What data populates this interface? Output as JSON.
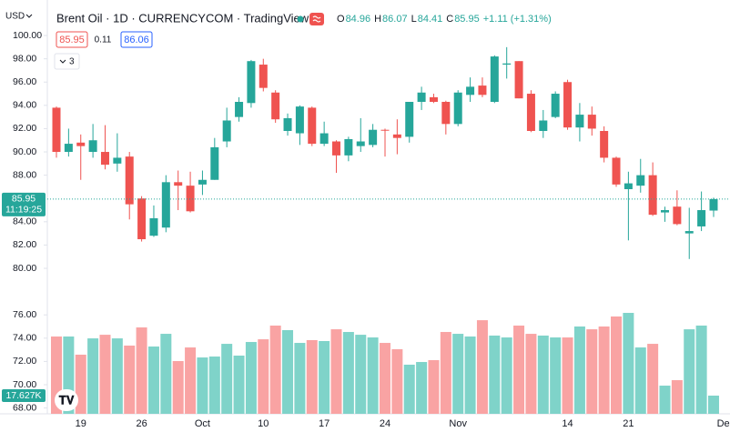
{
  "header": {
    "currency": "USD",
    "title": "Brent Oil · 1D · CURRENCYCOM · TradingView",
    "ohlc_keys": [
      "O",
      "H",
      "L",
      "C"
    ],
    "ohlc_values": [
      "84.96",
      "86.07",
      "84.41",
      "85.95"
    ],
    "change": "+1.11 (+1.31%)",
    "sell": "85.95",
    "spread": "0.11",
    "buy": "86.06",
    "indicator_count": "3"
  },
  "chart_data": {
    "type": "candlestick",
    "up_color": "#26a69a",
    "down_color": "#ef5350",
    "volume_up_color": "#7fd3c9",
    "volume_down_color": "#f9a3a3",
    "categories": [
      null,
      null,
      "19",
      null,
      null,
      null,
      null,
      "26",
      null,
      null,
      null,
      null,
      "Oct",
      null,
      null,
      null,
      null,
      "10",
      null,
      null,
      null,
      null,
      "17",
      null,
      null,
      null,
      null,
      "24",
      null,
      null,
      null,
      null,
      null,
      "Nov",
      null,
      null,
      null,
      null,
      null,
      null,
      null,
      null,
      "14",
      null,
      null,
      null,
      null,
      "21",
      null,
      null,
      null,
      null,
      null,
      null,
      null,
      "Dec"
    ],
    "open": [
      93.8,
      90.0,
      90.8,
      90.0,
      90.0,
      89.0,
      89.6,
      86.0,
      82.8,
      83.5,
      87.4,
      87.1,
      87.2,
      87.6,
      90.9,
      93.0,
      94.2,
      97.5,
      95.1,
      91.8,
      91.6,
      93.8,
      90.7,
      90.9,
      89.7,
      90.5,
      90.6,
      91.9,
      91.5,
      91.3,
      94.3,
      94.7,
      94.3,
      92.4,
      94.9,
      95.7,
      94.3,
      97.5,
      97.8,
      95.0,
      91.8,
      93.0,
      96.0,
      92.1,
      93.2,
      91.8,
      89.5,
      86.8,
      87.1,
      88.0,
      84.8,
      85.3,
      83.0,
      83.6,
      84.96,
      null
    ],
    "high": [
      93.9,
      92.0,
      91.5,
      92.4,
      92.3,
      91.6,
      90.0,
      86.2,
      85.4,
      88.0,
      88.4,
      88.3,
      88.4,
      91.2,
      93.8,
      94.7,
      97.9,
      98.0,
      95.3,
      93.3,
      94.0,
      93.9,
      92.6,
      91.0,
      91.3,
      92.9,
      92.4,
      92.0,
      92.8,
      94.3,
      95.6,
      95.0,
      94.4,
      95.3,
      96.4,
      96.4,
      98.3,
      99.0,
      97.8,
      95.3,
      93.6,
      95.2,
      96.2,
      94.2,
      93.9,
      92.2,
      89.6,
      88.3,
      89.4,
      89.1,
      85.3,
      86.7,
      85.2,
      86.6,
      86.07,
      null
    ],
    "low": [
      89.5,
      89.6,
      87.6,
      89.5,
      88.5,
      88.3,
      84.2,
      82.3,
      82.7,
      83.1,
      85.0,
      84.8,
      86.3,
      87.6,
      90.4,
      92.6,
      93.8,
      95.2,
      92.5,
      91.4,
      90.6,
      90.5,
      90.5,
      88.2,
      89.2,
      90.0,
      90.4,
      89.6,
      89.8,
      90.8,
      93.6,
      94.2,
      91.5,
      92.2,
      94.3,
      94.7,
      94.2,
      96.3,
      94.6,
      91.7,
      91.2,
      92.9,
      91.9,
      90.9,
      91.4,
      89.1,
      87.0,
      82.4,
      86.5,
      84.5,
      84.0,
      83.7,
      80.8,
      83.2,
      84.41,
      null
    ],
    "close": [
      90.0,
      90.7,
      90.5,
      91.0,
      88.9,
      89.5,
      85.5,
      82.5,
      84.3,
      87.4,
      87.1,
      84.9,
      87.6,
      90.4,
      92.7,
      94.3,
      97.8,
      95.5,
      92.8,
      92.9,
      93.9,
      90.7,
      91.6,
      89.7,
      91.1,
      90.9,
      91.9,
      91.85,
      91.2,
      94.3,
      95.1,
      94.3,
      92.4,
      95.1,
      95.6,
      94.9,
      98.2,
      97.6,
      94.6,
      91.8,
      92.7,
      95.0,
      92.1,
      93.2,
      92.0,
      89.5,
      87.2,
      87.3,
      88.0,
      84.6,
      85.0,
      83.8,
      83.2,
      85.0,
      85.95,
      null
    ],
    "volume": [
      74900,
      74900,
      57300,
      73100,
      76600,
      73100,
      66100,
      83700,
      65200,
      77500,
      51100,
      64300,
      54600,
      55500,
      67800,
      56400,
      69600,
      72200,
      85500,
      81100,
      68700,
      71400,
      70500,
      81900,
      79300,
      76600,
      74000,
      68700,
      62600,
      47600,
      50200,
      52000,
      79300,
      77500,
      74900,
      90700,
      75800,
      74000,
      85500,
      77500,
      75800,
      74000,
      74000,
      84600,
      81900,
      84600,
      94300,
      97800,
      64300,
      67800,
      27300,
      32600,
      81900,
      85500,
      17627,
      null
    ],
    "volume_last_label": "17.627K",
    "vlim": [
      0,
      100000
    ],
    "countdown": "11:19:25",
    "ylim": [
      67.5,
      102.27
    ],
    "yticks": [
      {
        "value": 100,
        "label": "100.00"
      },
      {
        "value": 98,
        "label": "98.00"
      },
      {
        "value": 96,
        "label": "96.00"
      },
      {
        "value": 94,
        "label": "94.00"
      },
      {
        "value": 92,
        "label": "92.00"
      },
      {
        "value": 90,
        "label": "90.00"
      },
      {
        "value": 88,
        "label": "88.00"
      },
      {
        "value": 84,
        "label": "84.00"
      },
      {
        "value": 82,
        "label": "82.00"
      },
      {
        "value": 80,
        "label": "80.00"
      },
      {
        "value": 76,
        "label": "76.00"
      },
      {
        "value": 74,
        "label": "74.00"
      },
      {
        "value": 72,
        "label": "72.00"
      },
      {
        "value": 70,
        "label": "70.00"
      },
      {
        "value": 68,
        "label": "68.00"
      }
    ]
  }
}
